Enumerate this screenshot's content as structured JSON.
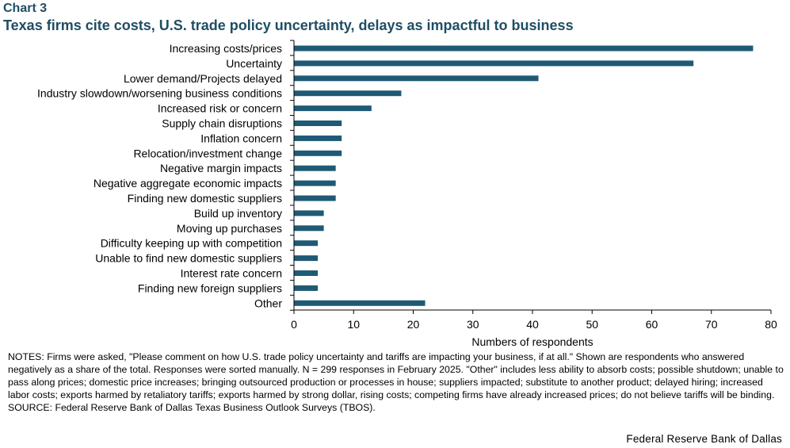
{
  "header": {
    "chart_label": "Chart 3",
    "title": "Texas firms cite costs, U.S. trade policy uncertainty, delays as impactful to business"
  },
  "chart_data": {
    "type": "bar",
    "orientation": "horizontal",
    "categories": [
      "Increasing costs/prices",
      "Uncertainty",
      "Lower demand/Projects delayed",
      "Industry slowdown/worsening business conditions",
      "Increased risk or concern",
      "Supply chain disruptions",
      "Inflation concern",
      "Relocation/investment change",
      "Negative margin impacts",
      "Negative aggregate economic impacts",
      "Finding new domestic suppliers",
      "Build up inventory",
      "Moving up purchases",
      "Difficulty keeping up with competition",
      "Unable to find new domestic suppliers",
      "Interest rate concern",
      "Finding new foreign suppliers",
      "Other"
    ],
    "values": [
      77,
      67,
      41,
      18,
      13,
      8,
      8,
      8,
      7,
      7,
      7,
      5,
      5,
      4,
      4,
      4,
      4,
      22
    ],
    "xlabel": "Numbers of respondents",
    "xlim": [
      0,
      80
    ],
    "xticks": [
      0,
      10,
      20,
      30,
      40,
      50,
      60,
      70,
      80
    ],
    "grid": false,
    "bar_color": "#1f5a75"
  },
  "footer": {
    "notes": "NOTES: Firms were asked, \"Please comment on how U.S. trade policy uncertainty and tariffs are impacting your business, if at all.\" Shown are respondents who answered negatively  as a share of the total. Responses were sorted manually.  N = 299 responses in February 2025. \"Other\" includes less ability to absorb costs; possible shutdown; unable to pass along prices; domestic price increases; bringing outsourced production or processes in house;  suppliers impacted;  substitute to another product;  delayed hiring; increased labor costs; exports harmed by retaliatory tariffs; exports harmed by strong dollar, rising costs; competing firms have already increased prices; do not believe tariffs will be binding.",
    "source": "SOURCE: Federal Reserve Bank of Dallas Texas Business Outlook Surveys (TBOS).",
    "credit": "Federal Reserve Bank of Dallas"
  }
}
